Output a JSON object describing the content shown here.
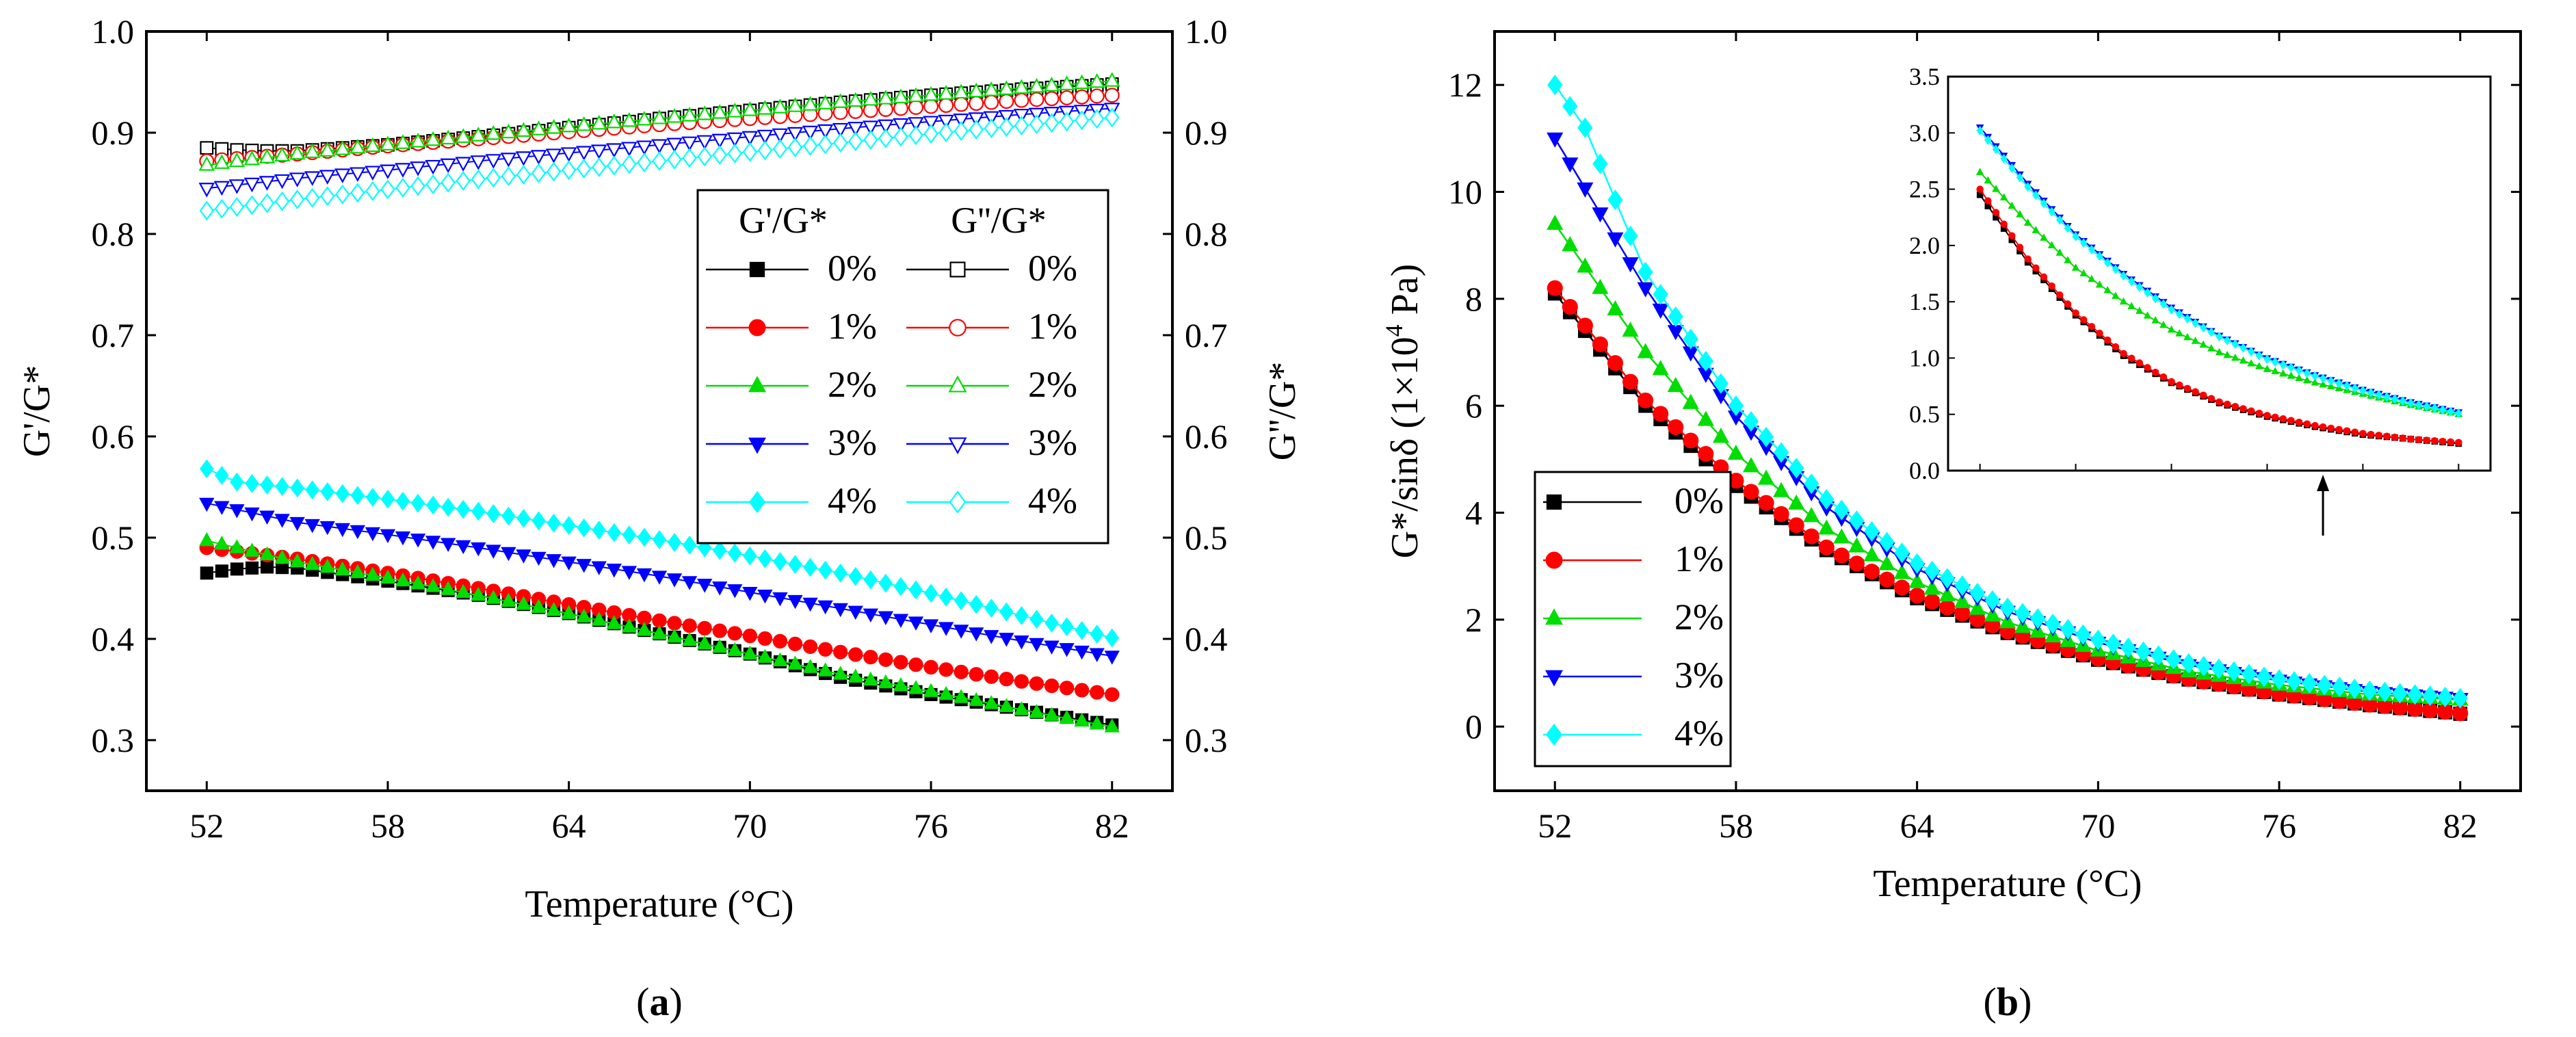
{
  "figure": {
    "caption_a": {
      "open": "(",
      "letter": "a",
      "close": ")"
    },
    "caption_b": {
      "open": "(",
      "letter": "b",
      "close": ")"
    }
  },
  "colors": {
    "0%": "#000000",
    "1%": "#ff0000",
    "2%": "#00dd00",
    "3%": "#0000ff",
    "4%": "#00ffff"
  },
  "chart_data": [
    {
      "id": "a",
      "type": "scatter",
      "xlabel": "Temperature (°C)",
      "ylabel": "G'/G*",
      "y2label": "G''/G*",
      "xlim": [
        50,
        84
      ],
      "ylim": [
        0.25,
        1.0
      ],
      "y2lim": [
        0.25,
        1.0
      ],
      "xticks": [
        52,
        58,
        64,
        70,
        76,
        82
      ],
      "yticks": [
        0.3,
        0.4,
        0.5,
        0.6,
        0.7,
        0.8,
        0.9,
        1.0
      ],
      "ytick_labels": [
        "0.3",
        "0.4",
        "0.5",
        "0.6",
        "0.7",
        "0.8",
        "0.9",
        "1.0"
      ],
      "legend_location": "center-right",
      "legend_headers": [
        "G'/G*",
        "G''/G*"
      ],
      "series": [
        {
          "name": "0%",
          "group": "G'/G*",
          "marker": "square",
          "filled": true,
          "x": [
            52,
            53,
            54,
            55,
            58,
            61,
            64,
            67,
            70,
            73,
            76,
            79,
            82
          ],
          "y": [
            0.465,
            0.469,
            0.471,
            0.47,
            0.457,
            0.443,
            0.425,
            0.405,
            0.385,
            0.362,
            0.345,
            0.33,
            0.315
          ]
        },
        {
          "name": "1%",
          "group": "G'/G*",
          "marker": "circle",
          "filled": true,
          "x": [
            52,
            55,
            58,
            61,
            64,
            67,
            70,
            73,
            76,
            79,
            82
          ],
          "y": [
            0.49,
            0.479,
            0.465,
            0.45,
            0.434,
            0.418,
            0.403,
            0.387,
            0.372,
            0.358,
            0.345
          ]
        },
        {
          "name": "2%",
          "group": "G'/G*",
          "marker": "triangle-up",
          "filled": true,
          "x": [
            52,
            55,
            58,
            61,
            64,
            67,
            70,
            73,
            76,
            79,
            82
          ],
          "y": [
            0.497,
            0.476,
            0.46,
            0.443,
            0.425,
            0.405,
            0.385,
            0.365,
            0.348,
            0.33,
            0.313
          ]
        },
        {
          "name": "3%",
          "group": "G'/G*",
          "marker": "triangle-down",
          "filled": true,
          "x": [
            52,
            55,
            58,
            61,
            64,
            67,
            70,
            73,
            76,
            79,
            82
          ],
          "y": [
            0.534,
            0.515,
            0.503,
            0.49,
            0.476,
            0.462,
            0.446,
            0.43,
            0.414,
            0.398,
            0.383
          ]
        },
        {
          "name": "4%",
          "group": "G'/G*",
          "marker": "diamond",
          "filled": true,
          "x": [
            52,
            53,
            55,
            58,
            61,
            64,
            67,
            70,
            73,
            76,
            79,
            82
          ],
          "y": [
            0.568,
            0.555,
            0.549,
            0.538,
            0.526,
            0.512,
            0.498,
            0.482,
            0.465,
            0.445,
            0.423,
            0.401
          ]
        },
        {
          "name": "0%",
          "group": "G''/G*",
          "marker": "square",
          "filled": false,
          "x": [
            52,
            53,
            54,
            55,
            58,
            61,
            64,
            67,
            70,
            73,
            76,
            79,
            82
          ],
          "y": [
            0.885,
            0.883,
            0.882,
            0.882,
            0.888,
            0.896,
            0.905,
            0.914,
            0.922,
            0.93,
            0.937,
            0.943,
            0.948
          ]
        },
        {
          "name": "1%",
          "group": "G''/G*",
          "marker": "circle",
          "filled": false,
          "x": [
            52,
            55,
            58,
            61,
            64,
            67,
            70,
            73,
            76,
            79,
            82
          ],
          "y": [
            0.872,
            0.879,
            0.887,
            0.894,
            0.901,
            0.908,
            0.914,
            0.92,
            0.926,
            0.932,
            0.937
          ]
        },
        {
          "name": "2%",
          "group": "G''/G*",
          "marker": "triangle-up",
          "filled": false,
          "x": [
            52,
            55,
            58,
            61,
            64,
            67,
            70,
            73,
            76,
            79,
            82
          ],
          "y": [
            0.868,
            0.879,
            0.888,
            0.897,
            0.906,
            0.914,
            0.922,
            0.93,
            0.937,
            0.944,
            0.951
          ]
        },
        {
          "name": "3%",
          "group": "G''/G*",
          "marker": "triangle-down",
          "filled": false,
          "x": [
            52,
            55,
            58,
            61,
            64,
            67,
            70,
            73,
            76,
            79,
            82
          ],
          "y": [
            0.845,
            0.855,
            0.863,
            0.872,
            0.88,
            0.888,
            0.896,
            0.904,
            0.911,
            0.918,
            0.924
          ]
        },
        {
          "name": "4%",
          "group": "G''/G*",
          "marker": "diamond",
          "filled": false,
          "x": [
            52,
            55,
            58,
            61,
            64,
            67,
            70,
            73,
            76,
            79,
            82
          ],
          "y": [
            0.823,
            0.834,
            0.844,
            0.854,
            0.863,
            0.872,
            0.881,
            0.89,
            0.899,
            0.907,
            0.915
          ]
        }
      ]
    },
    {
      "id": "b",
      "type": "line",
      "xlabel": "Temperature (°C)",
      "ylabel_prefix": "G*/sinδ (1×10",
      "ylabel_exponent": "4",
      "ylabel_suffix": " Pa)",
      "xlim": [
        50,
        84
      ],
      "ylim": [
        -1.2,
        13
      ],
      "xticks": [
        52,
        58,
        64,
        70,
        76,
        82
      ],
      "yticks": [
        0,
        2,
        4,
        6,
        8,
        10,
        12
      ],
      "ytick_labels": [
        "0",
        "2",
        "4",
        "6",
        "8",
        "10",
        "12"
      ],
      "legend_location": "lower-left",
      "series": [
        {
          "name": "0%",
          "marker": "square",
          "x": [
            52,
            55,
            58,
            61,
            64,
            67,
            70,
            73,
            76,
            79,
            82
          ],
          "y": [
            8.1,
            6.0,
            4.5,
            3.3,
            2.4,
            1.75,
            1.25,
            0.88,
            0.6,
            0.4,
            0.24
          ]
        },
        {
          "name": "1%",
          "marker": "circle",
          "x": [
            52,
            55,
            58,
            61,
            64,
            67,
            70,
            73,
            76,
            79,
            82
          ],
          "y": [
            8.2,
            6.1,
            4.6,
            3.35,
            2.45,
            1.78,
            1.27,
            0.89,
            0.61,
            0.41,
            0.25
          ]
        },
        {
          "name": "2%",
          "marker": "triangle-up",
          "x": [
            52,
            55,
            58,
            61,
            64,
            67,
            70,
            73,
            76,
            79,
            82
          ],
          "y": [
            9.4,
            7.0,
            5.1,
            3.7,
            2.7,
            1.95,
            1.42,
            1.03,
            0.78,
            0.6,
            0.5
          ]
        },
        {
          "name": "3%",
          "marker": "triangle-down",
          "x": [
            52,
            55,
            58,
            61,
            64,
            67,
            70,
            73,
            76,
            79,
            82
          ],
          "y": [
            11.0,
            8.2,
            5.8,
            4.1,
            2.95,
            2.15,
            1.57,
            1.15,
            0.86,
            0.65,
            0.52
          ]
        },
        {
          "name": "4%",
          "marker": "diamond",
          "x": [
            52,
            53,
            55,
            58,
            61,
            64,
            67,
            70,
            73,
            76,
            79,
            82
          ],
          "y": [
            12.0,
            11.2,
            8.5,
            6.0,
            4.25,
            3.05,
            2.22,
            1.62,
            1.18,
            0.88,
            0.67,
            0.53
          ]
        }
      ],
      "inset": {
        "type": "line",
        "xlim": [
          50,
          84
        ],
        "ylim": [
          0,
          3.5
        ],
        "yticks": [
          0.0,
          0.5,
          1.0,
          1.5,
          2.0,
          2.5,
          3.0,
          3.5
        ],
        "ytick_labels": [
          "0.0",
          "0.5",
          "1.0",
          "1.5",
          "2.0",
          "2.5",
          "3.0",
          "3.5"
        ],
        "arrow_at_x": 73.5,
        "series": [
          {
            "name": "0%",
            "x": [
              52,
              55,
              58,
              61,
              64,
              67,
              70,
              73,
              76,
              79,
              82
            ],
            "y": [
              2.45,
              1.85,
              1.38,
              1.02,
              0.78,
              0.6,
              0.48,
              0.39,
              0.32,
              0.28,
              0.24
            ]
          },
          {
            "name": "1%",
            "x": [
              52,
              55,
              58,
              61,
              64,
              67,
              70,
              73,
              76,
              79,
              82
            ],
            "y": [
              2.5,
              1.88,
              1.4,
              1.04,
              0.79,
              0.61,
              0.49,
              0.4,
              0.33,
              0.28,
              0.25
            ]
          },
          {
            "name": "2%",
            "x": [
              52,
              55,
              58,
              61,
              64,
              67,
              70,
              73,
              76,
              79,
              82
            ],
            "y": [
              2.65,
              2.2,
              1.8,
              1.5,
              1.25,
              1.05,
              0.9,
              0.78,
              0.68,
              0.58,
              0.5
            ]
          },
          {
            "name": "3%",
            "x": [
              52,
              55,
              58,
              61,
              64,
              67,
              70,
              73,
              76,
              79,
              82
            ],
            "y": [
              3.05,
              2.55,
              2.1,
              1.75,
              1.45,
              1.2,
              1.0,
              0.85,
              0.72,
              0.61,
              0.52
            ]
          },
          {
            "name": "4%",
            "x": [
              52,
              55,
              58,
              61,
              64,
              67,
              70,
              73,
              76,
              79,
              82
            ],
            "y": [
              3.02,
              2.52,
              2.08,
              1.73,
              1.43,
              1.19,
              0.99,
              0.84,
              0.71,
              0.6,
              0.51
            ]
          }
        ]
      }
    }
  ]
}
